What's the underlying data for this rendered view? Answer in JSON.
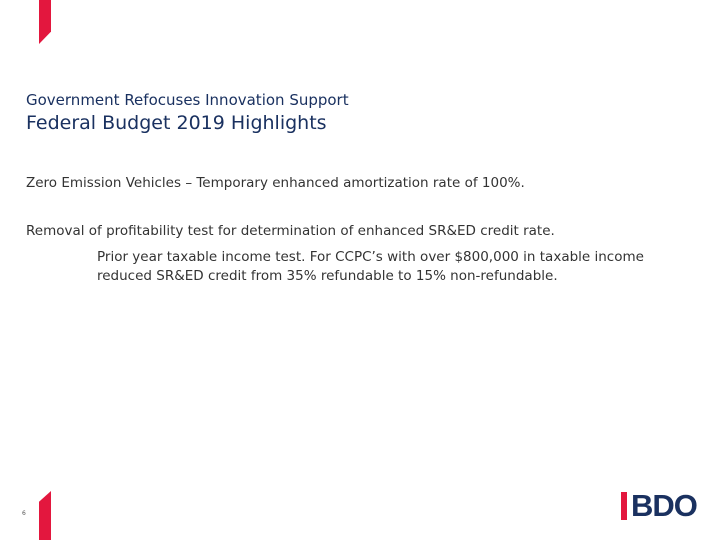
{
  "slide": {
    "subtitle": "Government Refocuses Innovation Support",
    "title": "Federal Budget 2019 Highlights",
    "bullets": [
      "Zero Emission Vehicles – Temporary enhanced amortization rate of 100%.",
      "Removal of profitability test for determination of enhanced SR&ED credit rate."
    ],
    "sub_bullet_lines": [
      "Prior year taxable income test. For CCPC’s with over $800,000 in taxable income",
      "reduced SR&ED credit from 35% refundable to 15% non-refundable."
    ],
    "page_number": "6"
  },
  "brand": {
    "logo_text": "BDO",
    "accent_color": "#e3173e",
    "primary_color": "#1a3160"
  }
}
